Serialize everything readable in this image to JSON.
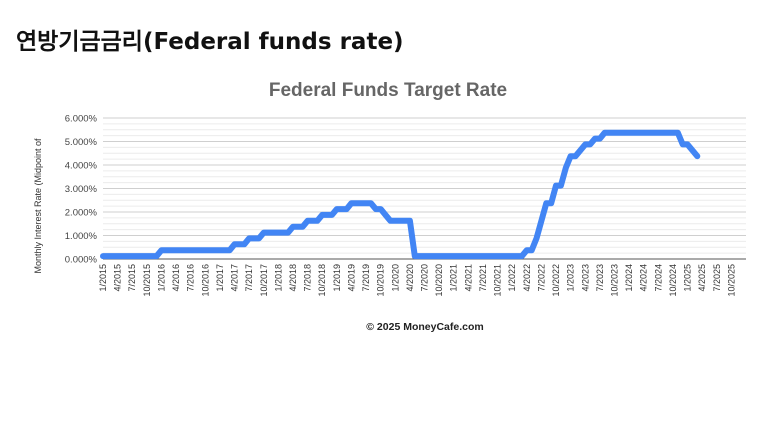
{
  "page": {
    "heading": "연방기금금리(Federal funds rate)"
  },
  "chart_data": {
    "type": "line",
    "title": "Federal Funds Target Rate",
    "xlabel": "",
    "ylabel": "Monthly Interest Rate (Midpoint of",
    "copyright": "© 2025 MoneyCafe.com",
    "ylim": [
      0,
      6
    ],
    "yticks": [
      "0.000%",
      "1.000%",
      "2.000%",
      "3.000%",
      "4.000%",
      "5.000%",
      "6.000%"
    ],
    "ytick_values": [
      0,
      1,
      2,
      3,
      4,
      5,
      6
    ],
    "xticks": [
      "1/2015",
      "4/2015",
      "7/2015",
      "10/2015",
      "1/2016",
      "4/2016",
      "7/2016",
      "10/2016",
      "1/2017",
      "4/2017",
      "7/2017",
      "10/2017",
      "1/2018",
      "4/2018",
      "7/2018",
      "10/2018",
      "1/2019",
      "4/2019",
      "7/2019",
      "10/2019",
      "1/2020",
      "4/2020",
      "7/2020",
      "10/2020",
      "1/2021",
      "4/2021",
      "7/2021",
      "10/2021",
      "1/2022",
      "4/2022",
      "7/2022",
      "10/2022",
      "1/2023",
      "4/2023",
      "7/2023",
      "10/2023",
      "1/2024",
      "4/2024",
      "7/2024",
      "10/2024",
      "1/2025",
      "4/2025",
      "7/2025",
      "10/2025"
    ],
    "x_range_months": [
      0,
      132
    ],
    "series": [
      {
        "name": "Federal Funds Target Rate",
        "color": "#4285f4",
        "points": [
          [
            0,
            0.125
          ],
          [
            11,
            0.125
          ],
          [
            12,
            0.375
          ],
          [
            26,
            0.375
          ],
          [
            27,
            0.625
          ],
          [
            29,
            0.625
          ],
          [
            30,
            0.875
          ],
          [
            32,
            0.875
          ],
          [
            33,
            1.125
          ],
          [
            38,
            1.125
          ],
          [
            39,
            1.375
          ],
          [
            41,
            1.375
          ],
          [
            42,
            1.625
          ],
          [
            44,
            1.625
          ],
          [
            45,
            1.875
          ],
          [
            47,
            1.875
          ],
          [
            48,
            2.125
          ],
          [
            50,
            2.125
          ],
          [
            51,
            2.375
          ],
          [
            55,
            2.375
          ],
          [
            56,
            2.125
          ],
          [
            57,
            2.125
          ],
          [
            58,
            1.875
          ],
          [
            59,
            1.625
          ],
          [
            63,
            1.625
          ],
          [
            64,
            0.125
          ],
          [
            86,
            0.125
          ],
          [
            87,
            0.375
          ],
          [
            88,
            0.375
          ],
          [
            89,
            0.875
          ],
          [
            90,
            1.625
          ],
          [
            91,
            2.375
          ],
          [
            92,
            2.375
          ],
          [
            93,
            3.125
          ],
          [
            94,
            3.125
          ],
          [
            95,
            3.875
          ],
          [
            96,
            4.375
          ],
          [
            97,
            4.375
          ],
          [
            98,
            4.625
          ],
          [
            99,
            4.875
          ],
          [
            100,
            4.875
          ],
          [
            101,
            5.125
          ],
          [
            102,
            5.125
          ],
          [
            103,
            5.375
          ],
          [
            118,
            5.375
          ],
          [
            119,
            4.875
          ],
          [
            120,
            4.875
          ],
          [
            121,
            4.625
          ],
          [
            122,
            4.375
          ]
        ]
      }
    ],
    "grid": true,
    "legend": "none"
  }
}
